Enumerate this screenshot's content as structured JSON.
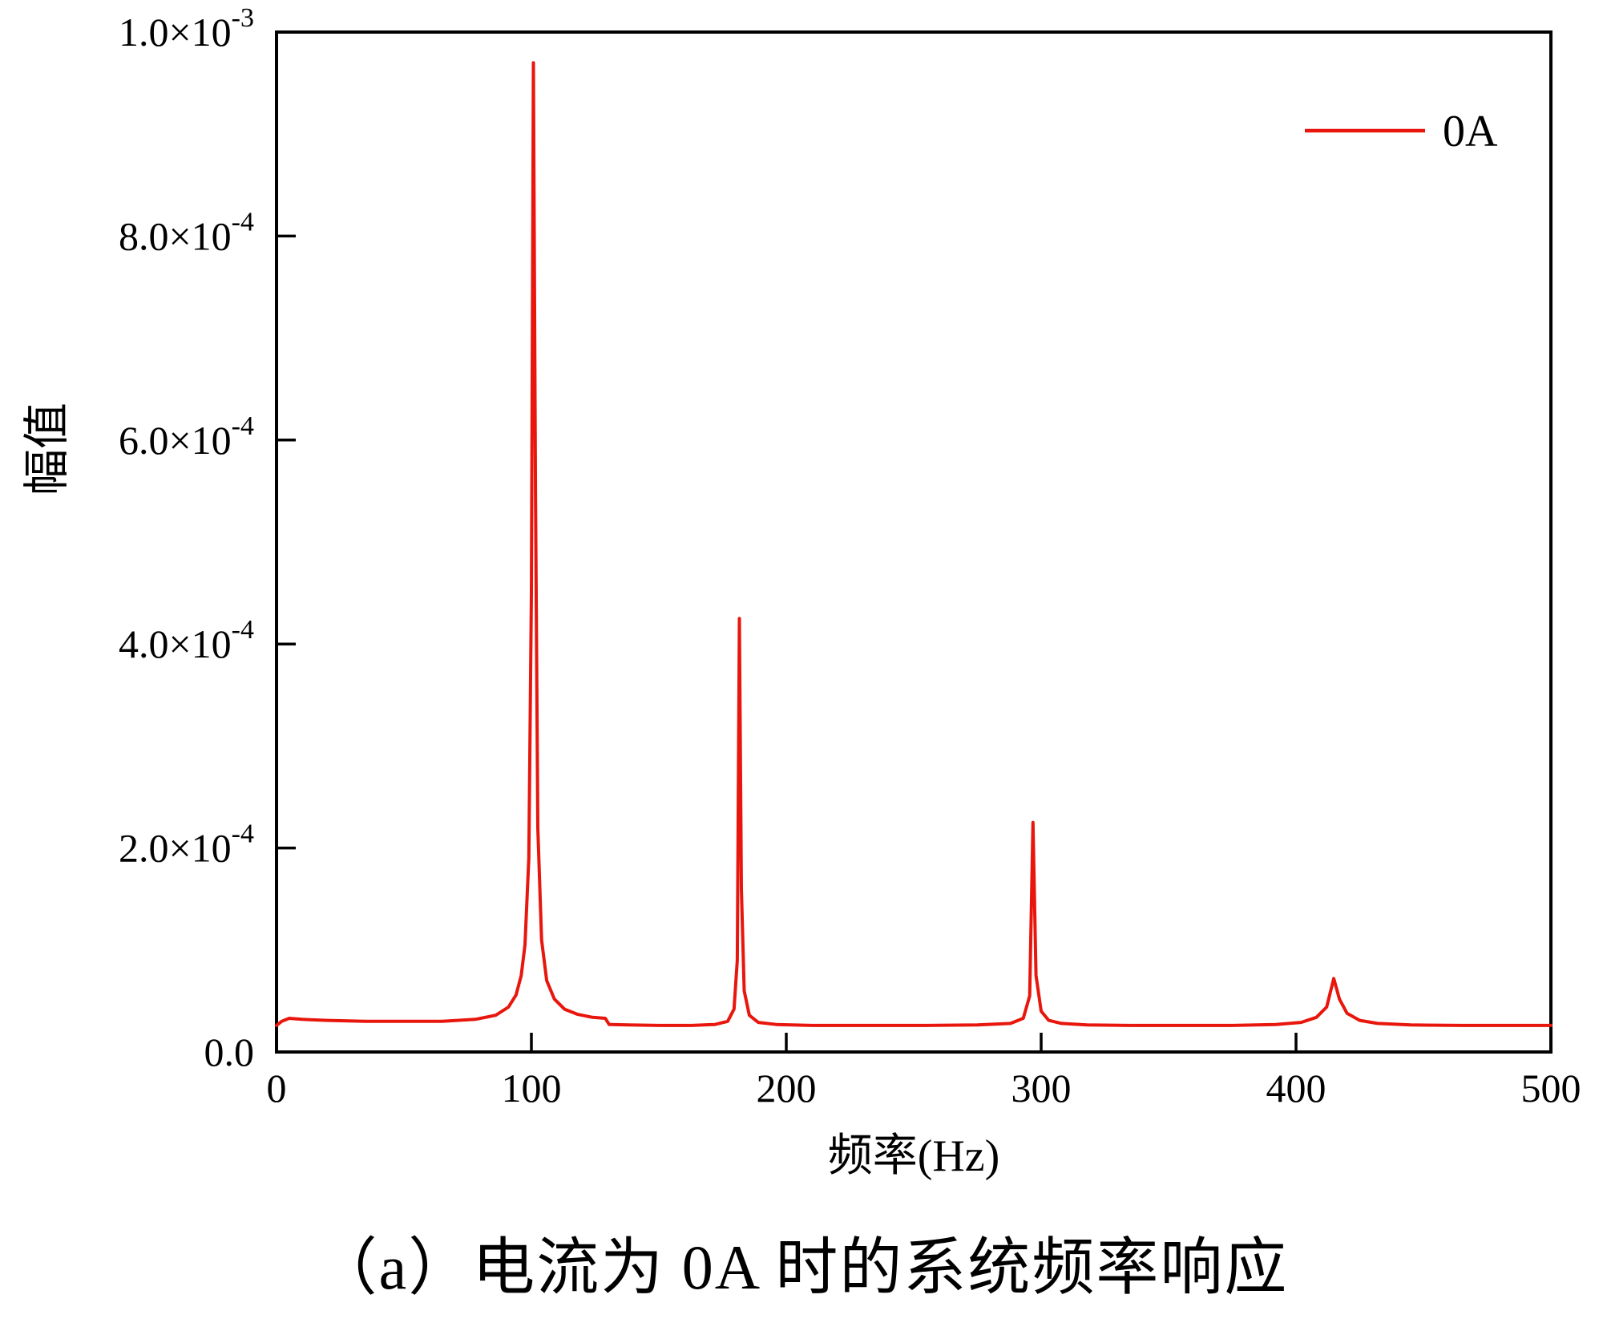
{
  "caption": "（a）电流为 0A 时的系统频率响应",
  "colors": {
    "line": "#e8160c",
    "axis": "#000000",
    "background": "#ffffff",
    "text": "#000000"
  },
  "chart_data": {
    "type": "line",
    "title": "",
    "xlabel": "频率(Hz)",
    "ylabel": "幅值",
    "xlim": [
      0,
      500
    ],
    "ylim": [
      0,
      0.001
    ],
    "grid": false,
    "xticks": [
      {
        "value": 0,
        "label": "0"
      },
      {
        "value": 100,
        "label": "100"
      },
      {
        "value": 200,
        "label": "200"
      },
      {
        "value": 300,
        "label": "300"
      },
      {
        "value": 400,
        "label": "400"
      },
      {
        "value": 500,
        "label": "500"
      }
    ],
    "yticks": [
      {
        "value": 0.0,
        "label": "0.0",
        "exp": ""
      },
      {
        "value": 0.0002,
        "label": "2.0×10",
        "exp": "-4"
      },
      {
        "value": 0.0004,
        "label": "4.0×10",
        "exp": "-4"
      },
      {
        "value": 0.0006,
        "label": "6.0×10",
        "exp": "-4"
      },
      {
        "value": 0.0008,
        "label": "8.0×10",
        "exp": "-4"
      },
      {
        "value": 0.001,
        "label": "1.0×10",
        "exp": "-3"
      }
    ],
    "legend": {
      "position": "top-right",
      "entries": [
        {
          "label": "0A",
          "color": "#e8160c"
        }
      ]
    },
    "peaks": [
      {
        "x": 101,
        "y": 0.00097
      },
      {
        "x": 182,
        "y": 0.000425
      },
      {
        "x": 297,
        "y": 0.000225
      },
      {
        "x": 415,
        "y": 7.2e-05
      }
    ],
    "series": [
      {
        "name": "0A",
        "color": "#e8160c",
        "points": [
          [
            0,
            2.6e-05
          ],
          [
            2,
            3e-05
          ],
          [
            5,
            3.3e-05
          ],
          [
            10,
            3.2e-05
          ],
          [
            20,
            3.1e-05
          ],
          [
            35,
            3e-05
          ],
          [
            50,
            3e-05
          ],
          [
            65,
            3e-05
          ],
          [
            78,
            3.2e-05
          ],
          [
            86,
            3.6e-05
          ],
          [
            91,
            4.4e-05
          ],
          [
            94,
            5.6e-05
          ],
          [
            96,
            7.5e-05
          ],
          [
            97.5,
            0.000105
          ],
          [
            99,
            0.00019
          ],
          [
            100,
            0.00045
          ],
          [
            100.8,
            0.00097
          ],
          [
            101.6,
            0.00055
          ],
          [
            102.5,
            0.00022
          ],
          [
            104,
            0.00011
          ],
          [
            106,
            7e-05
          ],
          [
            109,
            5.2e-05
          ],
          [
            113,
            4.2e-05
          ],
          [
            118,
            3.7e-05
          ],
          [
            124,
            3.4e-05
          ],
          [
            129,
            3.3e-05
          ],
          [
            130.5,
            2.7e-05
          ],
          [
            138,
            2.65e-05
          ],
          [
            150,
            2.6e-05
          ],
          [
            163,
            2.6e-05
          ],
          [
            172,
            2.7e-05
          ],
          [
            177,
            3e-05
          ],
          [
            179.5,
            4.2e-05
          ],
          [
            180.8,
            9e-05
          ],
          [
            181.6,
            0.000425
          ],
          [
            182.4,
            0.00016
          ],
          [
            183.5,
            6e-05
          ],
          [
            185.5,
            3.6e-05
          ],
          [
            189,
            2.9e-05
          ],
          [
            196,
            2.7e-05
          ],
          [
            210,
            2.6e-05
          ],
          [
            230,
            2.6e-05
          ],
          [
            255,
            2.6e-05
          ],
          [
            275,
            2.65e-05
          ],
          [
            288,
            2.8e-05
          ],
          [
            293,
            3.3e-05
          ],
          [
            295.5,
            5.5e-05
          ],
          [
            296.8,
            0.000225
          ],
          [
            298,
            7.5e-05
          ],
          [
            300,
            4e-05
          ],
          [
            303,
            3.1e-05
          ],
          [
            308,
            2.8e-05
          ],
          [
            318,
            2.65e-05
          ],
          [
            335,
            2.6e-05
          ],
          [
            355,
            2.6e-05
          ],
          [
            375,
            2.6e-05
          ],
          [
            392,
            2.7e-05
          ],
          [
            402,
            2.9e-05
          ],
          [
            408,
            3.4e-05
          ],
          [
            412,
            4.4e-05
          ],
          [
            414.8,
            7.2e-05
          ],
          [
            417,
            5.2e-05
          ],
          [
            420,
            3.8e-05
          ],
          [
            425,
            3.1e-05
          ],
          [
            432,
            2.8e-05
          ],
          [
            445,
            2.65e-05
          ],
          [
            465,
            2.6e-05
          ],
          [
            485,
            2.6e-05
          ],
          [
            500,
            2.6e-05
          ]
        ]
      }
    ]
  }
}
